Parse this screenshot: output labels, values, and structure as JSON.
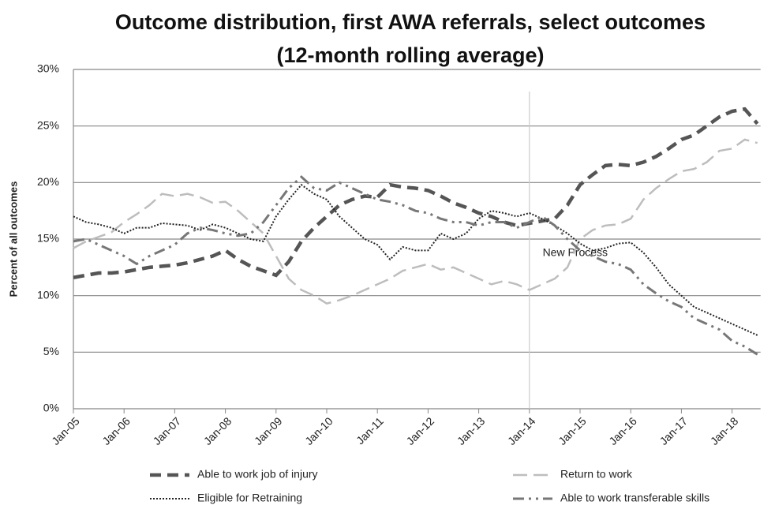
{
  "chart_data": {
    "type": "line",
    "title": "Outcome distribution, first AWA referrals, select outcomes",
    "subtitle": "(12-month rolling average)",
    "y_label": "Percent of all outcomes",
    "categories": [
      "Jan-05",
      null,
      null,
      null,
      "Jan-06",
      null,
      null,
      null,
      "Jan-07",
      null,
      null,
      null,
      "Jan-08",
      null,
      null,
      null,
      "Jan-09",
      null,
      null,
      null,
      "Jan-10",
      null,
      null,
      null,
      "Jan-11",
      null,
      null,
      null,
      "Jan-12",
      null,
      null,
      null,
      "Jan-13",
      null,
      null,
      null,
      "Jan-14",
      null,
      null,
      null,
      "Jan-15",
      null,
      null,
      null,
      "Jan-16",
      null,
      null,
      null,
      "Jan-17",
      null,
      null,
      null,
      "Jan-18",
      null,
      null
    ],
    "series": [
      {
        "name": "Able to work job of injury",
        "color": "#555555",
        "dash": "14,8",
        "width": 4.5,
        "values": [
          11.6,
          11.8,
          12.0,
          12.0,
          12.1,
          12.3,
          12.5,
          12.6,
          12.7,
          12.9,
          13.2,
          13.5,
          14.0,
          13.2,
          12.6,
          12.2,
          11.8,
          13.0,
          14.8,
          16.0,
          17.0,
          18.0,
          18.5,
          18.8,
          18.7,
          19.8,
          19.6,
          19.5,
          19.3,
          18.8,
          18.2,
          17.8,
          17.3,
          17.0,
          16.5,
          16.2,
          16.4,
          16.6,
          16.8,
          18.0,
          19.8,
          20.7,
          21.5,
          21.6,
          21.5,
          21.8,
          22.3,
          23.0,
          23.8,
          24.2,
          25.0,
          25.8,
          26.3,
          26.5,
          25.2
        ]
      },
      {
        "name": "Return to work",
        "color": "#bdbdbd",
        "dash": "18,8",
        "width": 2.5,
        "values": [
          14.2,
          14.8,
          15.2,
          15.6,
          16.5,
          17.2,
          18.0,
          19.0,
          18.8,
          19.0,
          18.7,
          18.2,
          18.3,
          17.5,
          16.5,
          15.5,
          13.5,
          11.5,
          10.5,
          10.0,
          9.3,
          9.6,
          10.0,
          10.5,
          11.0,
          11.5,
          12.2,
          12.5,
          12.8,
          12.3,
          12.5,
          12.0,
          11.5,
          11.0,
          11.3,
          11.0,
          10.5,
          11.0,
          11.5,
          12.5,
          15.0,
          15.8,
          16.2,
          16.3,
          16.8,
          18.5,
          19.5,
          20.3,
          21.0,
          21.2,
          21.8,
          22.8,
          23.0,
          23.8,
          23.5
        ]
      },
      {
        "name": "Eligible for Retraining",
        "color": "#222222",
        "dash": "2,2",
        "width": 2,
        "values": [
          17.0,
          16.5,
          16.3,
          16.0,
          15.5,
          16.0,
          16.0,
          16.4,
          16.3,
          16.2,
          15.8,
          16.3,
          16.0,
          15.5,
          15.0,
          14.8,
          17.0,
          18.5,
          19.8,
          19.0,
          18.5,
          17.0,
          16.0,
          15.0,
          14.5,
          13.2,
          14.3,
          14.0,
          14.0,
          15.5,
          15.0,
          15.5,
          16.8,
          17.5,
          17.3,
          17.0,
          17.3,
          16.8,
          16.2,
          15.5,
          14.6,
          14.0,
          14.2,
          14.6,
          14.7,
          13.8,
          12.5,
          11.0,
          10.0,
          9.0,
          8.5,
          8.0,
          7.5,
          7.0,
          6.5
        ]
      },
      {
        "name": "Able to work transferable skills",
        "color": "#777777",
        "dash": "14,6,3,6,3,6",
        "width": 3,
        "values": [
          14.8,
          15.0,
          14.5,
          14.0,
          13.5,
          12.8,
          13.5,
          14.0,
          14.5,
          15.5,
          16.0,
          15.8,
          15.5,
          15.3,
          15.5,
          16.5,
          18.0,
          19.5,
          20.5,
          19.5,
          19.3,
          20.0,
          19.5,
          19.0,
          18.5,
          18.3,
          18.0,
          17.5,
          17.3,
          16.8,
          16.5,
          16.5,
          16.2,
          16.5,
          16.5,
          16.0,
          16.5,
          17.0,
          16.2,
          15.0,
          14.0,
          13.5,
          13.0,
          12.8,
          12.3,
          11.0,
          10.2,
          9.5,
          9.0,
          8.0,
          7.5,
          7.0,
          6.0,
          5.5,
          4.8
        ]
      }
    ],
    "ylim": [
      0,
      30
    ],
    "yticks": [
      {
        "value": 0,
        "label": "0%"
      },
      {
        "value": 5,
        "label": "5%"
      },
      {
        "value": 10,
        "label": "10%"
      },
      {
        "value": 15,
        "label": "15%"
      },
      {
        "value": 20,
        "label": "20%"
      },
      {
        "value": 25,
        "label": "25%"
      },
      {
        "value": 30,
        "label": "30%"
      }
    ],
    "grid": true,
    "legend": "bottom",
    "annotation": {
      "text": "New Process",
      "x": "Jan-14"
    }
  }
}
